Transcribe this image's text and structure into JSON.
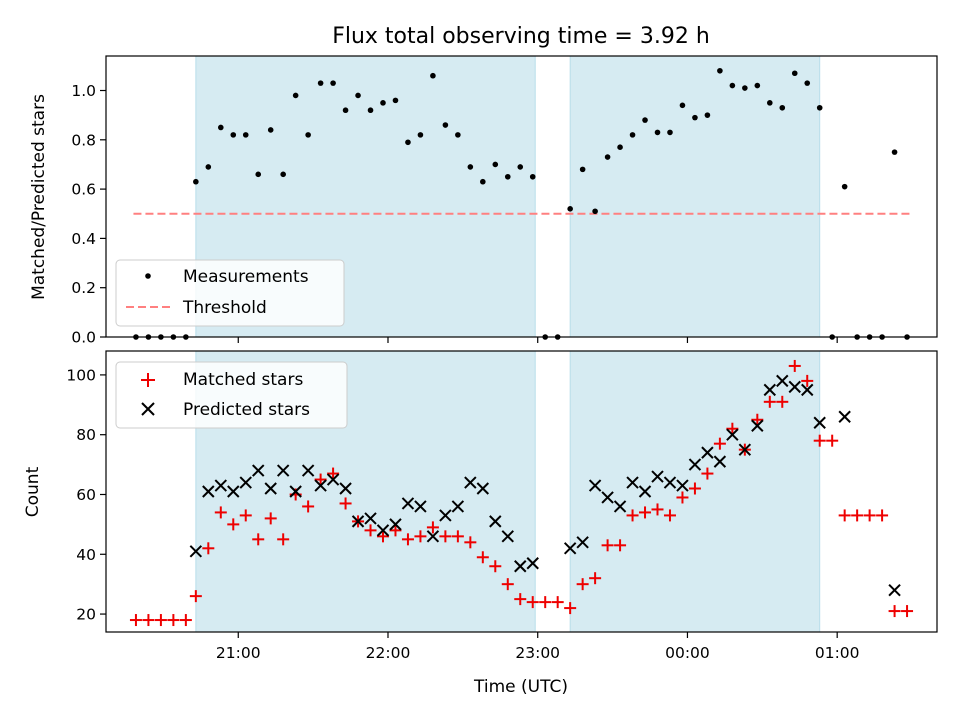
{
  "chart_data": [
    {
      "type": "scatter",
      "title": "Flux total observing time = 3.92 h",
      "xlabel": "",
      "ylabel": "Matched/Predicted stars",
      "ylim": [
        0,
        1.14
      ],
      "yticks": [
        0.0,
        0.2,
        0.4,
        0.6,
        0.8,
        1.0
      ],
      "ytick_labels": [
        "0.0",
        "0.2",
        "0.4",
        "0.6",
        "0.8",
        "1.0"
      ],
      "legend_placement": "lower-left",
      "shaded_intervals": [
        [
          "20:43",
          "22:59"
        ],
        [
          "23:13",
          "00:53"
        ]
      ],
      "threshold": {
        "name": "Threshold",
        "value": 0.5,
        "color": "#ff8080",
        "x_range": [
          "20:18",
          "01:29"
        ]
      },
      "series": [
        {
          "name": "Measurements",
          "marker": "dot",
          "color": "#000000",
          "points": [
            [
              "20:19",
              0
            ],
            [
              "20:24",
              0
            ],
            [
              "20:29",
              0
            ],
            [
              "20:34",
              0
            ],
            [
              "20:39",
              0
            ],
            [
              "20:43",
              0.63
            ],
            [
              "20:48",
              0.69
            ],
            [
              "20:53",
              0.85
            ],
            [
              "20:58",
              0.82
            ],
            [
              "21:03",
              0.82
            ],
            [
              "21:08",
              0.66
            ],
            [
              "21:13",
              0.84
            ],
            [
              "21:18",
              0.66
            ],
            [
              "21:23",
              0.98
            ],
            [
              "21:28",
              0.82
            ],
            [
              "21:33",
              1.03
            ],
            [
              "21:38",
              1.03
            ],
            [
              "21:43",
              0.92
            ],
            [
              "21:48",
              0.98
            ],
            [
              "21:53",
              0.92
            ],
            [
              "21:58",
              0.95
            ],
            [
              "22:03",
              0.96
            ],
            [
              "22:08",
              0.79
            ],
            [
              "22:13",
              0.82
            ],
            [
              "22:18",
              1.06
            ],
            [
              "22:23",
              0.86
            ],
            [
              "22:28",
              0.82
            ],
            [
              "22:33",
              0.69
            ],
            [
              "22:38",
              0.63
            ],
            [
              "22:43",
              0.7
            ],
            [
              "22:48",
              0.65
            ],
            [
              "22:53",
              0.69
            ],
            [
              "22:58",
              0.65
            ],
            [
              "23:03",
              0
            ],
            [
              "23:08",
              0
            ],
            [
              "23:13",
              0.52
            ],
            [
              "23:18",
              0.68
            ],
            [
              "23:23",
              0.51
            ],
            [
              "23:28",
              0.73
            ],
            [
              "23:33",
              0.77
            ],
            [
              "23:38",
              0.82
            ],
            [
              "23:43",
              0.88
            ],
            [
              "23:48",
              0.83
            ],
            [
              "23:53",
              0.83
            ],
            [
              "23:58",
              0.94
            ],
            [
              "00:03",
              0.89
            ],
            [
              "00:08",
              0.9
            ],
            [
              "00:13",
              1.08
            ],
            [
              "00:18",
              1.02
            ],
            [
              "00:23",
              1.01
            ],
            [
              "00:28",
              1.02
            ],
            [
              "00:33",
              0.95
            ],
            [
              "00:38",
              0.93
            ],
            [
              "00:43",
              1.07
            ],
            [
              "00:48",
              1.03
            ],
            [
              "00:53",
              0.93
            ],
            [
              "00:58",
              0
            ],
            [
              "01:03",
              0.61
            ],
            [
              "01:08",
              0
            ],
            [
              "01:13",
              0
            ],
            [
              "01:18",
              0
            ],
            [
              "01:23",
              0.75
            ],
            [
              "01:28",
              0
            ]
          ]
        }
      ]
    },
    {
      "type": "scatter",
      "title": "",
      "xlabel": "Time (UTC)",
      "ylabel": "Count",
      "ylim": [
        14,
        108
      ],
      "yticks": [
        20,
        40,
        60,
        80,
        100
      ],
      "ytick_labels": [
        "20",
        "40",
        "60",
        "80",
        "100"
      ],
      "x_ticks": [
        "21:00",
        "22:00",
        "23:00",
        "00:00",
        "01:00"
      ],
      "x_range": [
        "20:07",
        "01:40"
      ],
      "legend_placement": "top-left",
      "shaded_intervals": [
        [
          "20:43",
          "22:59"
        ],
        [
          "23:13",
          "00:53"
        ]
      ],
      "series": [
        {
          "name": "Matched stars",
          "marker": "plus",
          "color": "#ee0000",
          "points": [
            [
              "20:19",
              18
            ],
            [
              "20:24",
              18
            ],
            [
              "20:29",
              18
            ],
            [
              "20:34",
              18
            ],
            [
              "20:39",
              18
            ],
            [
              "20:43",
              26
            ],
            [
              "20:48",
              42
            ],
            [
              "20:53",
              54
            ],
            [
              "20:58",
              50
            ],
            [
              "21:03",
              53
            ],
            [
              "21:08",
              45
            ],
            [
              "21:13",
              52
            ],
            [
              "21:18",
              45
            ],
            [
              "21:23",
              60
            ],
            [
              "21:28",
              56
            ],
            [
              "21:33",
              65
            ],
            [
              "21:38",
              67
            ],
            [
              "21:43",
              57
            ],
            [
              "21:48",
              51
            ],
            [
              "21:53",
              48
            ],
            [
              "21:58",
              46
            ],
            [
              "22:03",
              48
            ],
            [
              "22:08",
              45
            ],
            [
              "22:13",
              46
            ],
            [
              "22:18",
              49
            ],
            [
              "22:23",
              46
            ],
            [
              "22:28",
              46
            ],
            [
              "22:33",
              44
            ],
            [
              "22:38",
              39
            ],
            [
              "22:43",
              36
            ],
            [
              "22:48",
              30
            ],
            [
              "22:53",
              25
            ],
            [
              "22:58",
              24
            ],
            [
              "23:03",
              24
            ],
            [
              "23:08",
              24
            ],
            [
              "23:13",
              22
            ],
            [
              "23:18",
              30
            ],
            [
              "23:23",
              32
            ],
            [
              "23:28",
              43
            ],
            [
              "23:33",
              43
            ],
            [
              "23:38",
              53
            ],
            [
              "23:43",
              54
            ],
            [
              "23:48",
              55
            ],
            [
              "23:53",
              53
            ],
            [
              "23:58",
              59
            ],
            [
              "00:03",
              62
            ],
            [
              "00:08",
              67
            ],
            [
              "00:13",
              77
            ],
            [
              "00:18",
              82
            ],
            [
              "00:23",
              75
            ],
            [
              "00:28",
              85
            ],
            [
              "00:33",
              91
            ],
            [
              "00:38",
              91
            ],
            [
              "00:43",
              103
            ],
            [
              "00:48",
              98
            ],
            [
              "00:53",
              78
            ],
            [
              "00:58",
              78
            ],
            [
              "01:03",
              53
            ],
            [
              "01:08",
              53
            ],
            [
              "01:13",
              53
            ],
            [
              "01:18",
              53
            ],
            [
              "01:23",
              21
            ],
            [
              "01:28",
              21
            ]
          ]
        },
        {
          "name": "Predicted stars",
          "marker": "x",
          "color": "#000000",
          "points": [
            [
              "20:43",
              41
            ],
            [
              "20:48",
              61
            ],
            [
              "20:53",
              63
            ],
            [
              "20:58",
              61
            ],
            [
              "21:03",
              64
            ],
            [
              "21:08",
              68
            ],
            [
              "21:13",
              62
            ],
            [
              "21:18",
              68
            ],
            [
              "21:23",
              61
            ],
            [
              "21:28",
              68
            ],
            [
              "21:33",
              63
            ],
            [
              "21:38",
              65
            ],
            [
              "21:43",
              62
            ],
            [
              "21:48",
              51
            ],
            [
              "21:53",
              52
            ],
            [
              "21:58",
              48
            ],
            [
              "22:03",
              50
            ],
            [
              "22:08",
              57
            ],
            [
              "22:13",
              56
            ],
            [
              "22:18",
              46
            ],
            [
              "22:23",
              53
            ],
            [
              "22:28",
              56
            ],
            [
              "22:33",
              64
            ],
            [
              "22:38",
              62
            ],
            [
              "22:43",
              51
            ],
            [
              "22:48",
              46
            ],
            [
              "22:53",
              36
            ],
            [
              "22:58",
              37
            ],
            [
              "23:13",
              42
            ],
            [
              "23:18",
              44
            ],
            [
              "23:23",
              63
            ],
            [
              "23:28",
              59
            ],
            [
              "23:33",
              56
            ],
            [
              "23:38",
              64
            ],
            [
              "23:43",
              61
            ],
            [
              "23:48",
              66
            ],
            [
              "23:53",
              64
            ],
            [
              "23:58",
              63
            ],
            [
              "00:03",
              70
            ],
            [
              "00:08",
              74
            ],
            [
              "00:13",
              71
            ],
            [
              "00:18",
              80
            ],
            [
              "00:23",
              75
            ],
            [
              "00:28",
              83
            ],
            [
              "00:33",
              95
            ],
            [
              "00:38",
              98
            ],
            [
              "00:43",
              96
            ],
            [
              "00:48",
              95
            ],
            [
              "00:53",
              84
            ],
            [
              "01:03",
              86
            ],
            [
              "01:23",
              28
            ]
          ]
        }
      ]
    }
  ]
}
